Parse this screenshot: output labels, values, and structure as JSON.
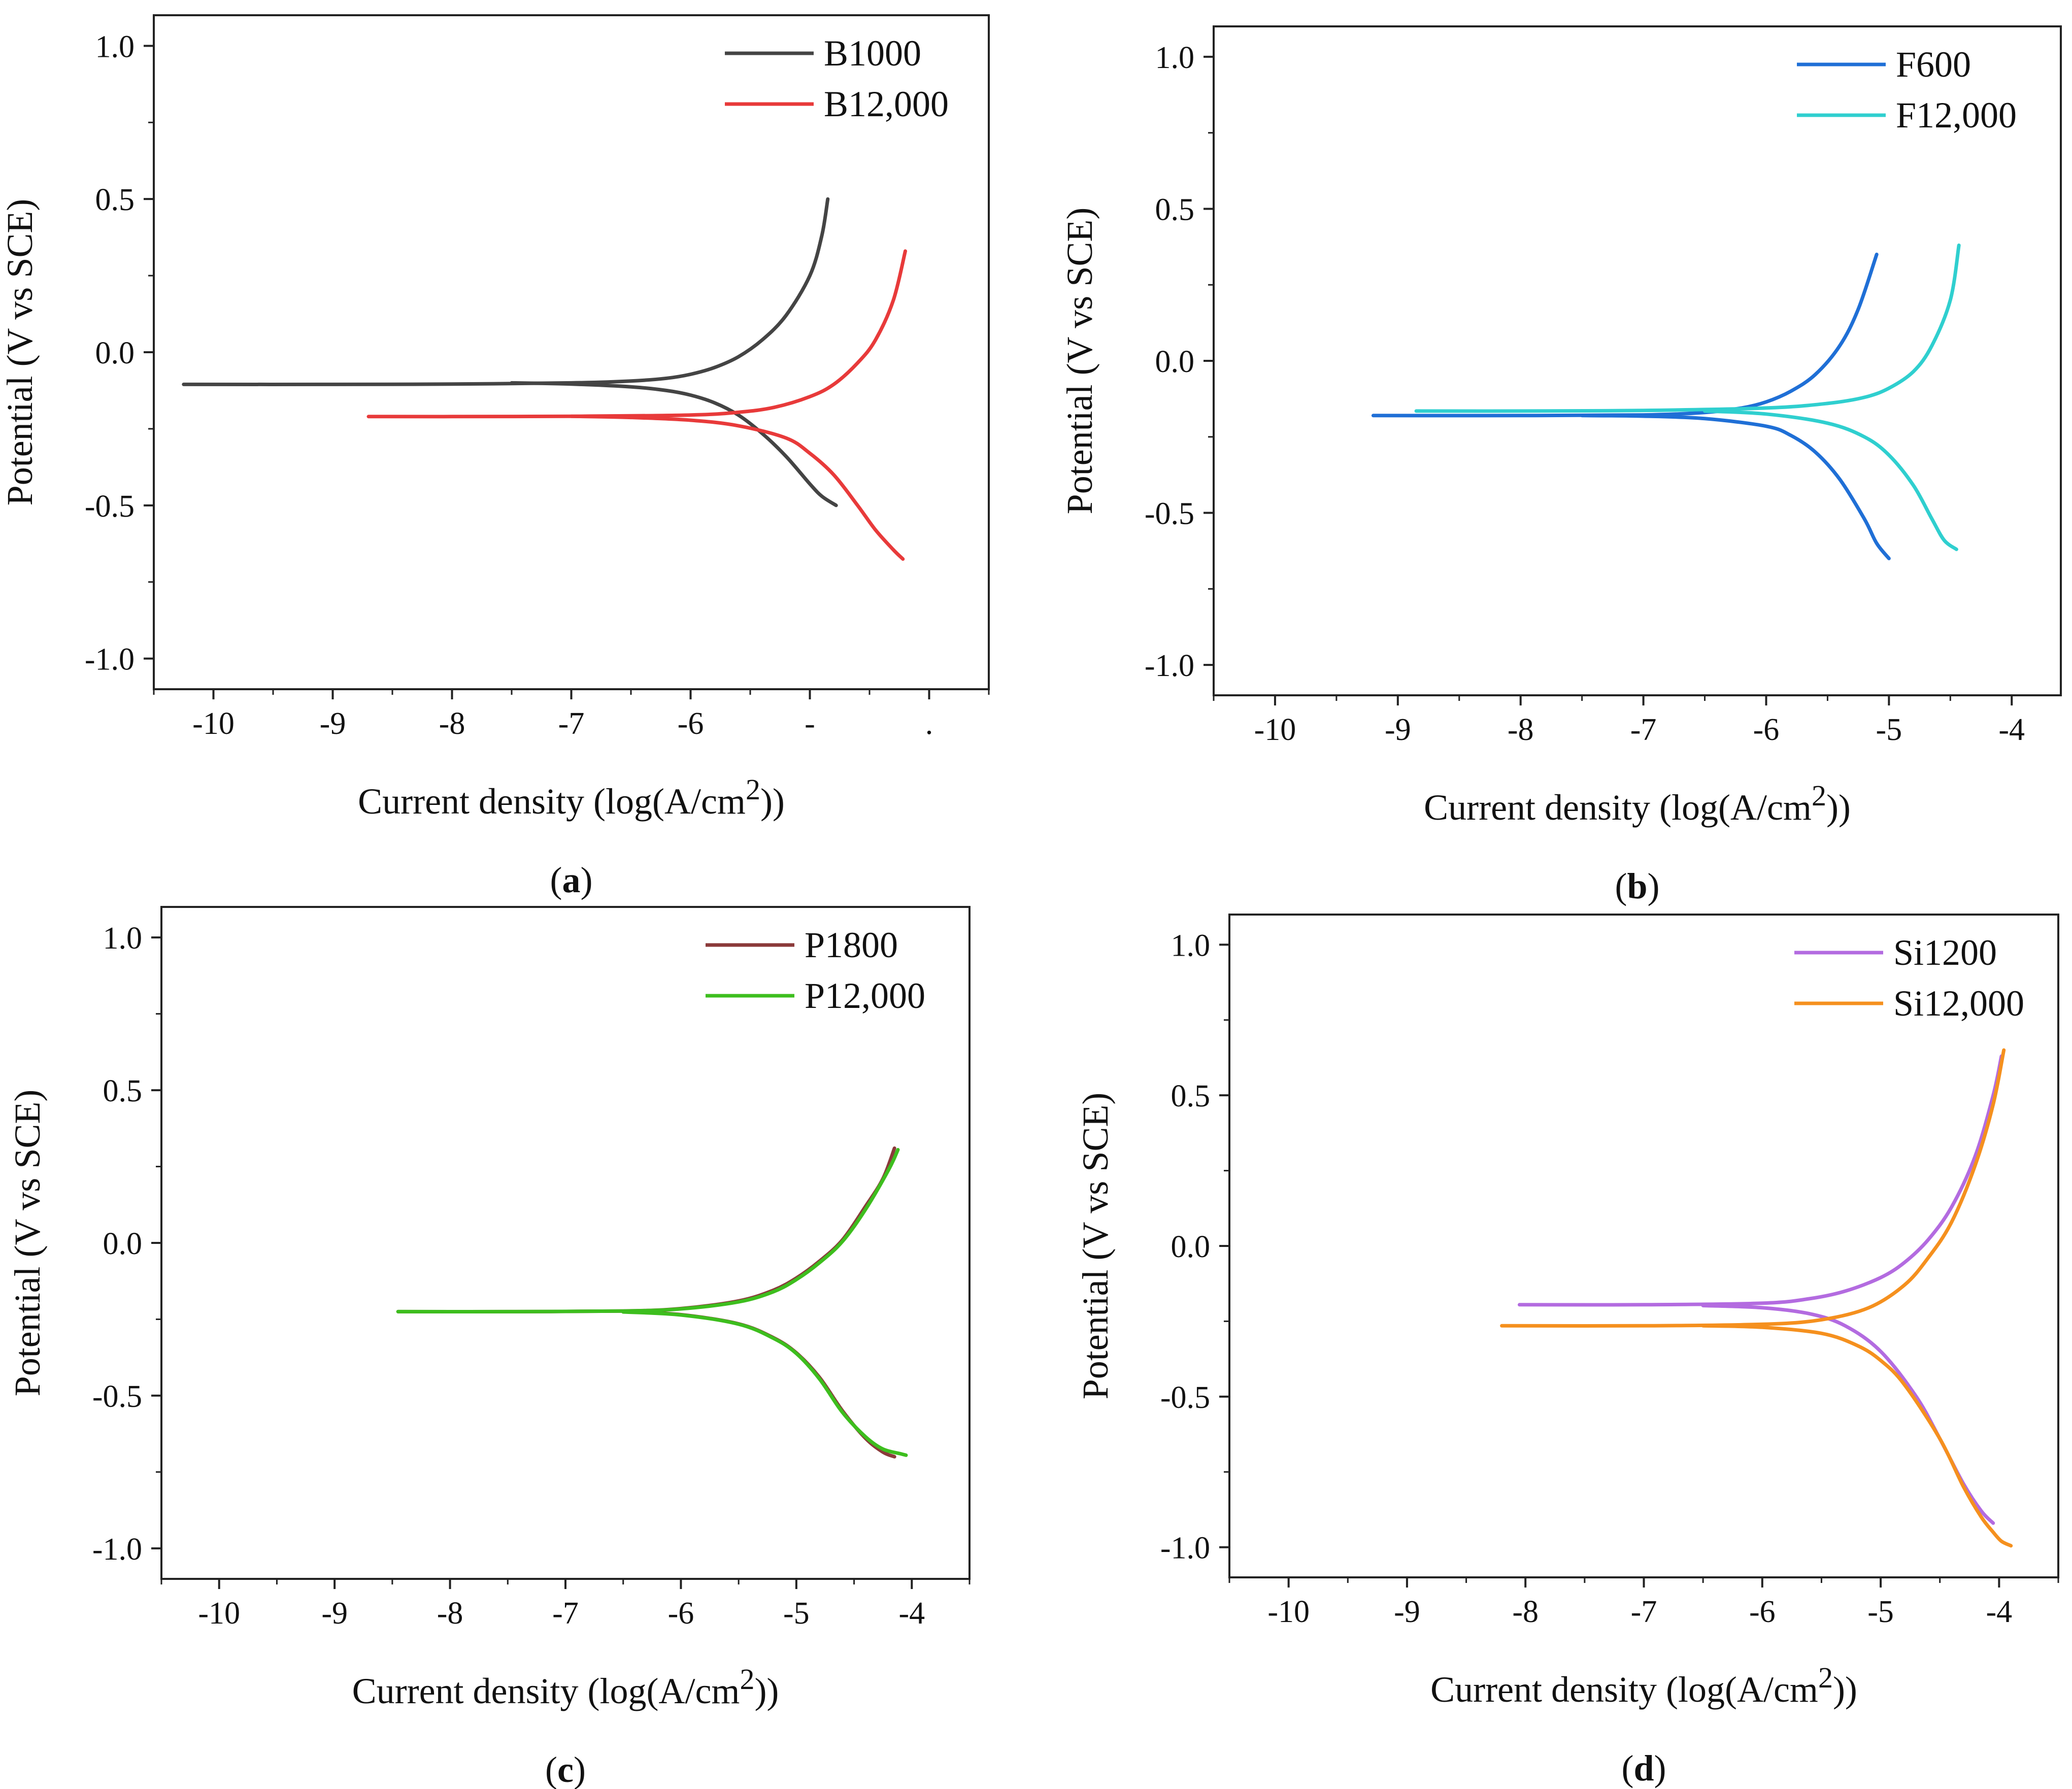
{
  "chart_data": [
    {
      "type": "line",
      "panel_label": "a",
      "xlabel": "Current density (log(A/cm2))",
      "ylabel": "Potential (V vs SCE)",
      "xlim": [
        -10.5,
        -3.5
      ],
      "ylim": [
        -1.1,
        1.1
      ],
      "x_ticks": [
        -10,
        -9,
        -8,
        -7,
        -6,
        -5,
        -4
      ],
      "x_tick_labels": [
        "-10",
        "-9",
        "-8",
        "-7",
        "-6",
        "-",
        "."
      ],
      "y_ticks": [
        1.0,
        0.5,
        0.0,
        -0.5,
        -1.0
      ],
      "y_tick_labels": [
        "1.0",
        "0.5",
        "0.0",
        "-0.5",
        "-1.0"
      ],
      "legend_position": "top-right",
      "series": [
        {
          "name": "B1000",
          "color": "#444444",
          "anodic": {
            "x": [
              -10.25,
              -9.0,
              -8.0,
              -7.0,
              -6.5,
              -6.2,
              -6.0,
              -5.8,
              -5.6,
              -5.4,
              -5.2,
              -5.0,
              -4.9,
              -4.85
            ],
            "y": [
              -0.105,
              -0.105,
              -0.104,
              -0.1,
              -0.094,
              -0.085,
              -0.072,
              -0.05,
              -0.015,
              0.04,
              0.12,
              0.25,
              0.38,
              0.5
            ]
          },
          "cathodic": {
            "x": [
              -7.5,
              -7.0,
              -6.5,
              -6.2,
              -6.0,
              -5.8,
              -5.6,
              -5.4,
              -5.2,
              -5.0,
              -4.9,
              -4.78
            ],
            "y": [
              -0.1,
              -0.104,
              -0.113,
              -0.125,
              -0.14,
              -0.165,
              -0.205,
              -0.265,
              -0.34,
              -0.43,
              -0.47,
              -0.5
            ]
          }
        },
        {
          "name": "B12,000",
          "color": "#e83a3a",
          "anodic": {
            "x": [
              -8.7,
              -8.0,
              -7.0,
              -6.0,
              -5.6,
              -5.3,
              -5.0,
              -4.8,
              -4.6,
              -4.45,
              -4.3,
              -4.2
            ],
            "y": [
              -0.21,
              -0.21,
              -0.209,
              -0.205,
              -0.196,
              -0.18,
              -0.145,
              -0.105,
              -0.035,
              0.04,
              0.17,
              0.33
            ]
          },
          "cathodic": {
            "x": [
              -7.0,
              -6.5,
              -6.0,
              -5.6,
              -5.2,
              -5.0,
              -4.8,
              -4.6,
              -4.45,
              -4.3,
              -4.22
            ],
            "y": [
              -0.209,
              -0.213,
              -0.222,
              -0.24,
              -0.28,
              -0.33,
              -0.4,
              -0.5,
              -0.58,
              -0.645,
              -0.675
            ]
          }
        }
      ]
    },
    {
      "type": "line",
      "panel_label": "b",
      "xlabel": "Current density (log(A/cm2))",
      "ylabel": "Potential (V vs SCE)",
      "xlim": [
        -10.5,
        -3.6
      ],
      "ylim": [
        -1.1,
        1.1
      ],
      "x_ticks": [
        -10,
        -9,
        -8,
        -7,
        -6,
        -5,
        -4
      ],
      "x_tick_labels": [
        "-10",
        "-9",
        "-8",
        "-7",
        "-6",
        "-5",
        "-4"
      ],
      "y_ticks": [
        1.0,
        0.5,
        0.0,
        -0.5,
        -1.0
      ],
      "y_tick_labels": [
        "1.0",
        "0.5",
        "0.0",
        "-0.5",
        "-1.0"
      ],
      "legend_position": "top-right",
      "series": [
        {
          "name": "F600",
          "color": "#1f6fd6",
          "anodic": {
            "x": [
              -9.2,
              -8.0,
              -7.0,
              -6.5,
              -6.2,
              -6.0,
              -5.8,
              -5.6,
              -5.4,
              -5.25,
              -5.1
            ],
            "y": [
              -0.18,
              -0.18,
              -0.178,
              -0.17,
              -0.155,
              -0.135,
              -0.1,
              -0.045,
              0.05,
              0.17,
              0.35
            ]
          },
          "cathodic": {
            "x": [
              -7.5,
              -7.0,
              -6.5,
              -6.0,
              -5.8,
              -5.6,
              -5.4,
              -5.2,
              -5.1,
              -5.0
            ],
            "y": [
              -0.18,
              -0.182,
              -0.19,
              -0.215,
              -0.245,
              -0.3,
              -0.39,
              -0.52,
              -0.6,
              -0.65
            ]
          }
        },
        {
          "name": "F12,000",
          "color": "#2fcfcf",
          "anodic": {
            "x": [
              -8.85,
              -8.0,
              -7.0,
              -6.0,
              -5.5,
              -5.2,
              -5.0,
              -4.8,
              -4.65,
              -4.5,
              -4.43
            ],
            "y": [
              -0.165,
              -0.165,
              -0.163,
              -0.155,
              -0.14,
              -0.12,
              -0.09,
              -0.035,
              0.05,
              0.2,
              0.38
            ]
          },
          "cathodic": {
            "x": [
              -6.5,
              -6.0,
              -5.5,
              -5.2,
              -5.0,
              -4.8,
              -4.65,
              -4.55,
              -4.45
            ],
            "y": [
              -0.165,
              -0.175,
              -0.205,
              -0.25,
              -0.31,
              -0.41,
              -0.52,
              -0.59,
              -0.62
            ]
          }
        }
      ]
    },
    {
      "type": "line",
      "panel_label": "c",
      "xlabel": "Current density (log(A/cm2))",
      "ylabel": "Potential (V vs SCE)",
      "xlim": [
        -10.5,
        -3.5
      ],
      "ylim": [
        -1.1,
        1.1
      ],
      "x_ticks": [
        -10,
        -9,
        -8,
        -7,
        -6,
        -5,
        -4
      ],
      "x_tick_labels": [
        "-10",
        "-9",
        "-8",
        "-7",
        "-6",
        "-5",
        "-4"
      ],
      "y_ticks": [
        1.0,
        0.5,
        0.0,
        -0.5,
        -1.0
      ],
      "y_tick_labels": [
        "1.0",
        "0.5",
        "0.0",
        "-0.5",
        "-1.0"
      ],
      "legend_position": "top-right",
      "series": [
        {
          "name": "P1800",
          "color": "#8b3a3a",
          "anodic": {
            "x": [
              -8.45,
              -7.5,
              -6.5,
              -6.0,
              -5.5,
              -5.2,
              -5.0,
              -4.8,
              -4.6,
              -4.4,
              -4.25,
              -4.15
            ],
            "y": [
              -0.225,
              -0.225,
              -0.223,
              -0.215,
              -0.19,
              -0.155,
              -0.115,
              -0.06,
              0.01,
              0.12,
              0.21,
              0.31
            ]
          },
          "cathodic": {
            "x": [
              -6.5,
              -6.0,
              -5.5,
              -5.2,
              -5.0,
              -4.8,
              -4.6,
              -4.4,
              -4.25,
              -4.15
            ],
            "y": [
              -0.225,
              -0.235,
              -0.265,
              -0.31,
              -0.36,
              -0.44,
              -0.55,
              -0.64,
              -0.685,
              -0.7
            ]
          }
        },
        {
          "name": "P12,000",
          "color": "#3dbe1e",
          "anodic": {
            "x": [
              -8.45,
              -7.5,
              -6.5,
              -6.0,
              -5.5,
              -5.2,
              -5.0,
              -4.8,
              -4.6,
              -4.4,
              -4.2,
              -4.12
            ],
            "y": [
              -0.225,
              -0.225,
              -0.223,
              -0.216,
              -0.193,
              -0.16,
              -0.12,
              -0.065,
              0.005,
              0.11,
              0.24,
              0.305
            ]
          },
          "cathodic": {
            "x": [
              -6.5,
              -6.0,
              -5.5,
              -5.2,
              -5.0,
              -4.8,
              -4.6,
              -4.4,
              -4.25,
              -4.1,
              -4.05
            ],
            "y": [
              -0.226,
              -0.236,
              -0.266,
              -0.312,
              -0.362,
              -0.445,
              -0.555,
              -0.635,
              -0.675,
              -0.69,
              -0.695
            ]
          }
        }
      ]
    },
    {
      "type": "line",
      "panel_label": "d",
      "xlabel": "Current density (log(A/cm2))",
      "ylabel": "Potential (V vs SCE)",
      "xlim": [
        -10.5,
        -3.5
      ],
      "ylim": [
        -1.1,
        1.1
      ],
      "x_ticks": [
        -10,
        -9,
        -8,
        -7,
        -6,
        -5,
        -4
      ],
      "x_tick_labels": [
        "-10",
        "-9",
        "-8",
        "-7",
        "-6",
        "-5",
        "-4"
      ],
      "y_ticks": [
        1.0,
        0.5,
        0.0,
        -0.5,
        -1.0
      ],
      "y_tick_labels": [
        "1.0",
        "0.5",
        "0.0",
        "-0.5",
        "-1.0"
      ],
      "legend_position": "top-right",
      "series": [
        {
          "name": "Si1200",
          "color": "#b36be0",
          "anodic": {
            "x": [
              -8.05,
              -7.0,
              -6.0,
              -5.6,
              -5.3,
              -5.0,
              -4.8,
              -4.6,
              -4.4,
              -4.2,
              -4.05,
              -3.98
            ],
            "y": [
              -0.195,
              -0.195,
              -0.19,
              -0.175,
              -0.15,
              -0.105,
              -0.055,
              0.02,
              0.13,
              0.3,
              0.5,
              0.63
            ]
          },
          "cathodic": {
            "x": [
              -6.5,
              -6.0,
              -5.6,
              -5.3,
              -5.0,
              -4.7,
              -4.5,
              -4.3,
              -4.15,
              -4.05
            ],
            "y": [
              -0.198,
              -0.205,
              -0.225,
              -0.265,
              -0.35,
              -0.5,
              -0.64,
              -0.79,
              -0.88,
              -0.92
            ]
          }
        },
        {
          "name": "Si12,000",
          "color": "#f5901e",
          "anodic": {
            "x": [
              -8.2,
              -7.0,
              -6.0,
              -5.5,
              -5.1,
              -4.8,
              -4.6,
              -4.4,
              -4.2,
              -4.05,
              -3.96
            ],
            "y": [
              -0.265,
              -0.265,
              -0.26,
              -0.245,
              -0.205,
              -0.13,
              -0.04,
              0.08,
              0.27,
              0.47,
              0.65
            ]
          },
          "cathodic": {
            "x": [
              -6.5,
              -6.0,
              -5.5,
              -5.2,
              -5.0,
              -4.8,
              -4.5,
              -4.3,
              -4.15,
              -4.05,
              -3.98,
              -3.9
            ],
            "y": [
              -0.265,
              -0.27,
              -0.29,
              -0.33,
              -0.38,
              -0.46,
              -0.64,
              -0.8,
              -0.9,
              -0.95,
              -0.98,
              -0.995
            ]
          }
        }
      ]
    }
  ]
}
